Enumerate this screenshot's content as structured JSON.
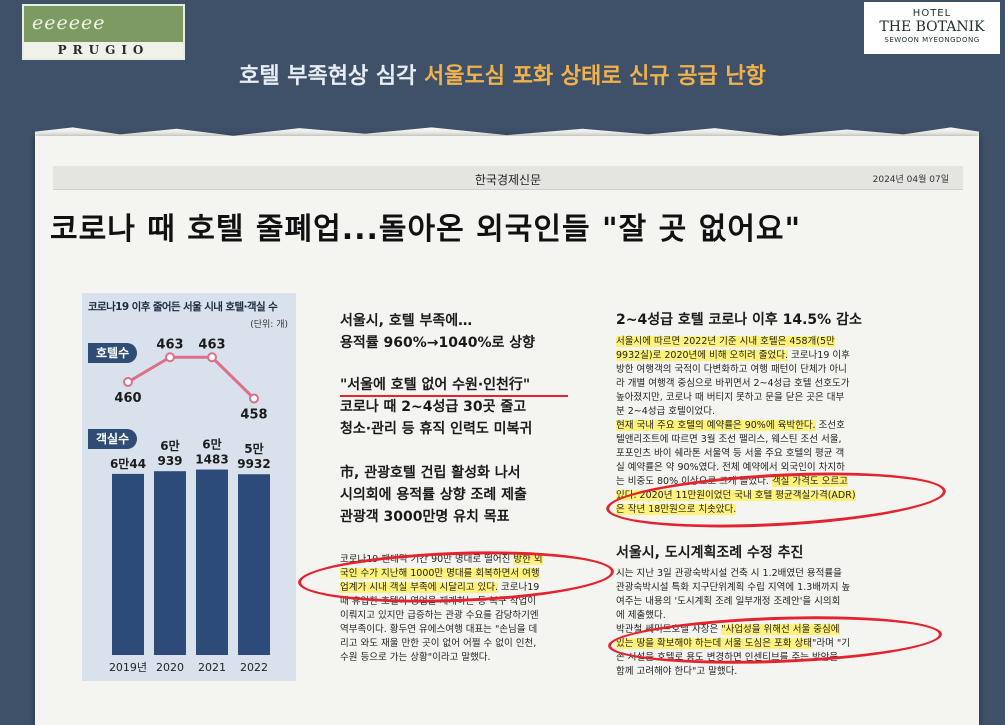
{
  "logos": {
    "left_script": "eeeeee",
    "left_brand": "PRUGIO",
    "right_line1": "HOTEL",
    "right_line2": "THE BOTANIK",
    "right_line3": "SEWOON MYEONGDONG"
  },
  "headline": {
    "part1": "호텔 부족현상 심각 ",
    "part2": "서울도심 포화 상태로 신규 공급 난항"
  },
  "article": {
    "source": "한국경제신문",
    "date": "2024년 04월 07일",
    "title": "코로나 때 호텔 줄폐업...돌아온 외국인들 \"잘 곳 없어요\""
  },
  "chart_data": {
    "type": "bar",
    "title": "코로나19 이후 줄어든 서울 시내 호텔·객실 수",
    "unit": "(단위: 개)",
    "categories": [
      "2019년",
      "2020",
      "2021",
      "2022"
    ],
    "series": [
      {
        "name": "호텔수",
        "type": "line",
        "values": [
          460,
          463,
          463,
          458
        ],
        "labels": [
          "460",
          "463",
          "463",
          "458"
        ]
      },
      {
        "name": "객실수",
        "type": "bar",
        "values": [
          60044,
          60939,
          61483,
          59932
        ],
        "labels": [
          [
            "6만44"
          ],
          [
            "6만",
            "939"
          ],
          [
            "6만",
            "1483"
          ],
          [
            "5만",
            "9932"
          ]
        ]
      }
    ],
    "colors": {
      "bar": "#2c4b78",
      "line": "#dd6f86",
      "background": "#d9e2ec"
    }
  },
  "middle": {
    "block1": [
      "서울시, 호텔 부족에…",
      "용적률 960%→1040%로 상향"
    ],
    "block2": [
      "\"서울에 호텔 없어 수원·인천行\"",
      "코로나 때 2~4성급 30곳 줄고",
      "청소·관리 등 휴직 인력도 미복귀"
    ],
    "block3": [
      "市, 관광호텔 건립 활성화 나서",
      "시의회에 용적률 상향 조례 제출",
      "관광객 3000만명 유치 목표"
    ],
    "body": [
      {
        "pre": "코로나19 팬데믹 기간 90만 명대로 떨어진 ",
        "hl": "방한 외",
        "post": ""
      },
      {
        "pre": "",
        "hl": "국인 수가 지난해 1000만 명대를 회복하면서 여행",
        "post": ""
      },
      {
        "pre": "",
        "hl": "업계가 시내 객실 부족에 시달리고 있다.",
        "post": " 코로나19"
      },
      {
        "pre": "때 휴업한 호텔이 영업을 재개하는 등 복구 작업이",
        "hl": "",
        "post": ""
      },
      {
        "pre": "이뤄지고 있지만 급증하는 관광 수요를 감당하기엔",
        "hl": "",
        "post": ""
      },
      {
        "pre": "역부족이다. 황두연 유에스여행 대표는 \"손님을 데",
        "hl": "",
        "post": ""
      },
      {
        "pre": "리고 와도 재울 만한 곳이 없어 어쩔 수 없이 인천,",
        "hl": "",
        "post": ""
      },
      {
        "pre": "수원 등으로 가는 상황\"이라고 말했다.",
        "hl": "",
        "post": ""
      }
    ]
  },
  "right": {
    "heading1": "2~4성급 호텔 코로나 이후 14.5% 감소",
    "para1": [
      {
        "pre": "",
        "hl": "서울시에 따르면 2022년 기준 시내 호텔은 458개(5만",
        "post": ""
      },
      {
        "pre": "",
        "hl": "9932실)로 2020년에 비해 오히려 줄었다.",
        "post": " 코로나19 이후"
      },
      {
        "pre": "방한 여행객의 국적이 다변화하고 여행 패턴이 단체가 아니",
        "hl": "",
        "post": ""
      },
      {
        "pre": "라 개별 여행객 중심으로 바뀌면서 2~4성급 호텔 선호도가",
        "hl": "",
        "post": ""
      },
      {
        "pre": "높아졌지만, 코로나 때 버티지 못하고 문을 닫은 곳은 대부",
        "hl": "",
        "post": ""
      },
      {
        "pre": "분 2~4성급 호텔이었다.",
        "hl": "",
        "post": ""
      },
      {
        "pre": "",
        "hl": "현재 국내 주요 호텔의 예약률은 90%에 육박한다.",
        "post": " 조선호"
      },
      {
        "pre": "텔앤리조트에 따르면 3월 조선 팰리스, 웨스틴 조선 서울,",
        "hl": "",
        "post": ""
      },
      {
        "pre": "포포인츠 바이 쉐라톤 서울역 등 서울 주요 호텔의 평균 객",
        "hl": "",
        "post": ""
      },
      {
        "pre": "실 예약률은 약 90%였다. 전체 예약에서 외국인이 차지하",
        "hl": "",
        "post": ""
      },
      {
        "pre": "는 비중도 80% 이상으로 크게 늘었다. ",
        "hl": "객실 가격도 오르고",
        "post": ""
      },
      {
        "pre": "",
        "hl": "있다. 2020년 11만원이었던 국내 호텔 평균객실가격(ADR)",
        "post": ""
      },
      {
        "pre": "",
        "hl": "은 작년 18만원으로 치솟았다.",
        "post": ""
      }
    ],
    "heading2": "서울시, 도시계획조례 수정 추진",
    "para2": [
      {
        "pre": "시는 지난 3일 관광숙박시설 건축 시 1.2배였던 용적률을",
        "hl": "",
        "post": ""
      },
      {
        "pre": "관광숙박시설 특화 지구단위계획 수립 지역에 1.3배까지 높",
        "hl": "",
        "post": ""
      },
      {
        "pre": "여주는 내용의 '도시계획 조례 일부개정 조례안'을 시의회",
        "hl": "",
        "post": ""
      },
      {
        "pre": "에 제출했다.",
        "hl": "",
        "post": ""
      },
      {
        "pre": "박관철 쎄미트호텔 사장은 ",
        "hl": "\"사업성을 위해선 서울 중심에",
        "post": ""
      },
      {
        "pre": "",
        "hl": "있는 땅을 확보해야 하는데 서울 도심은 포화 상태",
        "post": "\"라며 \"기"
      },
      {
        "pre": "존 시설을 호텔로 용도 변경하면 인센티브를 주는 방안을",
        "hl": "",
        "post": ""
      },
      {
        "pre": "함께 고려해야 한다\"고 말했다.",
        "hl": "",
        "post": ""
      }
    ]
  }
}
